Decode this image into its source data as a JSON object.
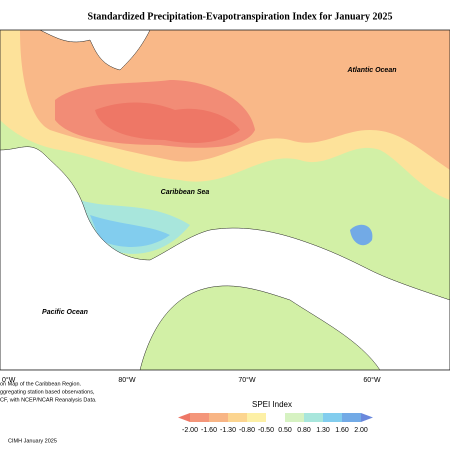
{
  "title": "Standardized Precipitation-Evapotranspiration Index for January 2025",
  "map": {
    "ocean_labels": [
      "Atlantic Ocean",
      "Caribbean Sea",
      "Pacific Ocean"
    ],
    "lon_labels": [
      "0°W",
      "80°W",
      "70°W",
      "60°W"
    ]
  },
  "notes": [
    "on Map of the Caribbean Region.",
    "ggregating station based observations,",
    "CF, with NCEP/NCAR Reanalysis Data."
  ],
  "footer": "CIMH January 2025",
  "legend": {
    "title": "SPEI Index",
    "ticks": [
      "-2.00",
      "-1.60",
      "-1.30",
      "-0.80",
      "-0.50",
      "0.50",
      "0.80",
      "1.30",
      "1.60",
      "2.00"
    ],
    "colors": [
      "#ee7766",
      "#f4967a",
      "#f8b585",
      "#fcd590",
      "#fdf0a6",
      "#ffffff",
      "#d6f2c2",
      "#a8e6dc",
      "#82cdee",
      "#72aae6",
      "#6a88dc"
    ]
  }
}
